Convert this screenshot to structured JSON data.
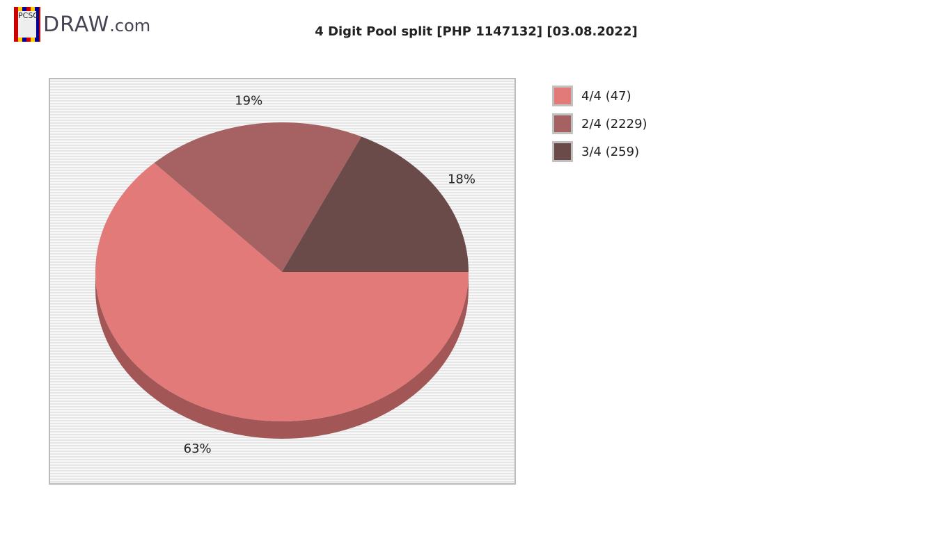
{
  "logo": {
    "badge_text": "PCSO",
    "text": "DRAW",
    "suffix": ".com"
  },
  "chart_data": {
    "type": "pie",
    "title": "4 Digit Pool split [PHP 1147132] [03.08.2022]",
    "slices": [
      {
        "name": "4/4 (47)",
        "percent": 63,
        "label": "63%",
        "color": "#e27a7a",
        "side": "#a25656"
      },
      {
        "name": "2/4 (2229)",
        "percent": 19,
        "label": "19%",
        "color": "#a66262",
        "side": "#744444"
      },
      {
        "name": "3/4 (259)",
        "percent": 18,
        "label": "18%",
        "color": "#6b4a4a",
        "side": "#4a3333"
      }
    ],
    "legend_placement": "right",
    "style": "3d"
  }
}
